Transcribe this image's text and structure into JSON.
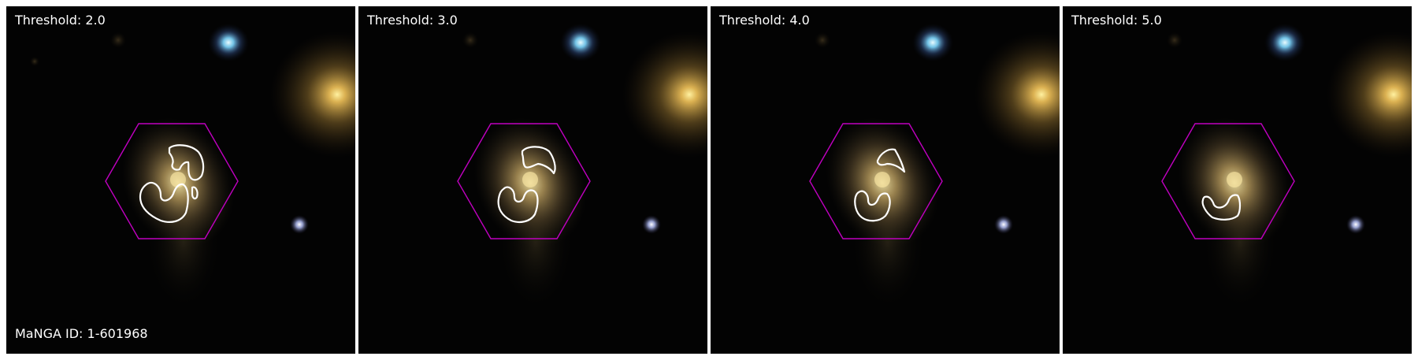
{
  "panels": [
    {
      "label": "Threshold: 2.0"
    },
    {
      "label": "Threshold: 3.0"
    },
    {
      "label": "Threshold: 4.0"
    },
    {
      "label": "Threshold: 5.0"
    }
  ],
  "manga_label": "MaNGA ID: 1-601968",
  "colors": {
    "background": "#030303",
    "hexagon": "#c000c0",
    "contour": "#ffffff",
    "galaxy_core": "#e8d58a",
    "bright_star_blue": "#8fe3ff",
    "bright_star_yellow": "#ffe070"
  },
  "icons": [
    "ifu-hexagon",
    "contour-line"
  ]
}
